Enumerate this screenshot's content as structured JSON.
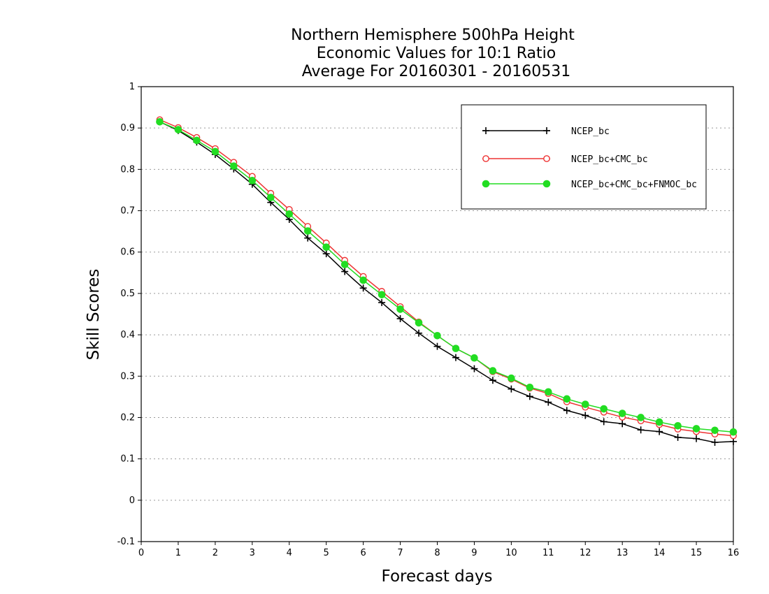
{
  "chart_data": {
    "type": "line",
    "title": [
      "Northern Hemisphere 500hPa Height",
      "Economic Values for 10:1 Ratio",
      "Average For 20160301 - 20160531"
    ],
    "xlabel": "Forecast days",
    "ylabel": "Skill Scores",
    "xlim": [
      0,
      16
    ],
    "ylim": [
      -0.1,
      1
    ],
    "xticks": [
      "0",
      "1",
      "2",
      "3",
      "4",
      "5",
      "6",
      "7",
      "8",
      "9",
      "10",
      "11",
      "12",
      "13",
      "14",
      "15",
      "16"
    ],
    "yticks": [
      "-0.1",
      "0",
      "0.1",
      "0.2",
      "0.3",
      "0.4",
      "0.5",
      "0.6",
      "0.7",
      "0.8",
      "0.9",
      "1"
    ],
    "grid": true,
    "legend_position": "top-right",
    "x": [
      0.5,
      1,
      1.5,
      2,
      2.5,
      3,
      3.5,
      4,
      4.5,
      5,
      5.5,
      6,
      6.5,
      7,
      7.5,
      8,
      8.5,
      9,
      9.5,
      10,
      10.5,
      11,
      11.5,
      12,
      12.5,
      13,
      13.5,
      14,
      14.5,
      15,
      15.5,
      16
    ],
    "series": [
      {
        "name": "NCEP_bc",
        "color": "#000000",
        "marker": "plus",
        "values": [
          0.915,
          0.894,
          0.866,
          0.836,
          0.801,
          0.764,
          0.72,
          0.679,
          0.634,
          0.596,
          0.553,
          0.513,
          0.478,
          0.439,
          0.404,
          0.372,
          0.345,
          0.318,
          0.29,
          0.269,
          0.251,
          0.237,
          0.217,
          0.205,
          0.19,
          0.185,
          0.17,
          0.166,
          0.152,
          0.149,
          0.14,
          0.142
        ]
      },
      {
        "name": "NCEP_bc+CMC_bc",
        "color": "#ee3333",
        "marker": "open-circle",
        "values": [
          0.92,
          0.901,
          0.877,
          0.85,
          0.817,
          0.783,
          0.742,
          0.703,
          0.662,
          0.622,
          0.58,
          0.541,
          0.505,
          0.468,
          0.431,
          0.398,
          0.367,
          0.344,
          0.311,
          0.293,
          0.271,
          0.258,
          0.238,
          0.225,
          0.213,
          0.201,
          0.192,
          0.183,
          0.172,
          0.166,
          0.16,
          0.156
        ]
      },
      {
        "name": "NCEP_bc+CMC_bc+FNMOC_bc",
        "color": "#22dd22",
        "marker": "filled-circle",
        "values": [
          0.915,
          0.896,
          0.87,
          0.843,
          0.808,
          0.773,
          0.732,
          0.692,
          0.651,
          0.612,
          0.57,
          0.532,
          0.497,
          0.462,
          0.429,
          0.398,
          0.367,
          0.344,
          0.313,
          0.295,
          0.273,
          0.262,
          0.245,
          0.232,
          0.221,
          0.21,
          0.2,
          0.189,
          0.18,
          0.173,
          0.169,
          0.165
        ]
      }
    ]
  }
}
